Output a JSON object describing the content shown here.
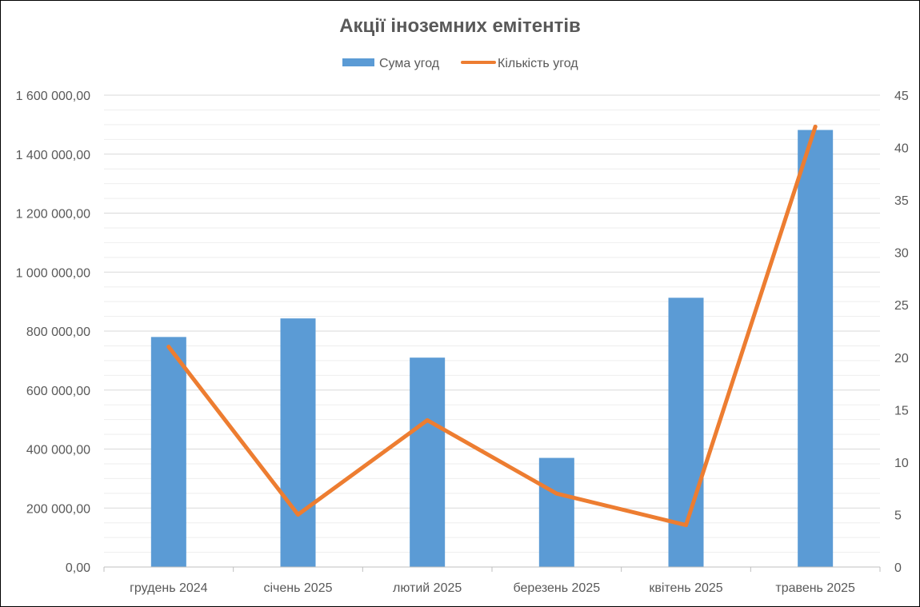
{
  "chart_data": {
    "type": "bar",
    "title": "Акції іноземних емітентів",
    "categories": [
      "грудень 2024",
      "січень 2025",
      "лютий 2025",
      "березень 2025",
      "квітень 2025",
      "травень 2025"
    ],
    "series": [
      {
        "name": "Сума угод",
        "type": "bar",
        "axis": "left",
        "color": "#5B9BD5",
        "values": [
          780000,
          843000,
          710000,
          370000,
          913000,
          1482000
        ]
      },
      {
        "name": "Кількість угод",
        "type": "line",
        "axis": "right",
        "color": "#ED7D31",
        "values": [
          21,
          5,
          14,
          7,
          4,
          42
        ]
      }
    ],
    "y_left": {
      "ylim": [
        0,
        1600000
      ],
      "ticks": [
        0,
        200000,
        400000,
        600000,
        800000,
        1000000,
        1200000,
        1400000,
        1600000
      ],
      "tick_labels": [
        "0,00",
        "200 000,00",
        "400 000,00",
        "600 000,00",
        "800 000,00",
        "1 000 000,00",
        "1 200 000,00",
        "1 400 000,00",
        "1 600 000,00"
      ]
    },
    "y_right": {
      "ylim": [
        0,
        45
      ],
      "ticks": [
        0,
        5,
        10,
        15,
        20,
        25,
        30,
        35,
        40,
        45
      ],
      "tick_labels": [
        "0",
        "5",
        "10",
        "15",
        "20",
        "25",
        "30",
        "35",
        "40",
        "45"
      ]
    },
    "grid": true,
    "legend": "top-center",
    "xlabel": "",
    "ylabel": ""
  }
}
